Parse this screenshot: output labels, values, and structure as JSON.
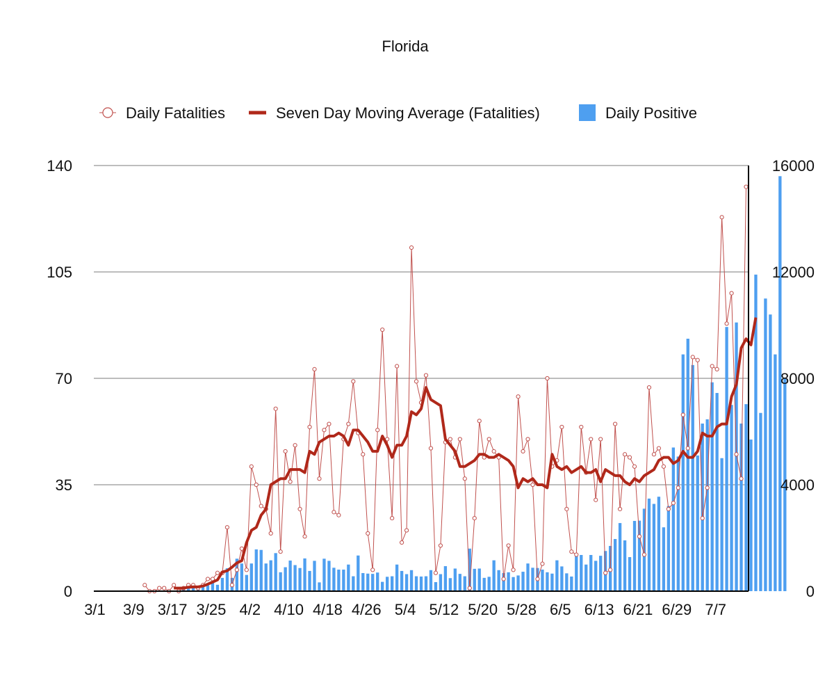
{
  "chart_data": {
    "type": "bar",
    "title": "Florida",
    "legend_position": "top",
    "grid": true,
    "x": {
      "start": "3/1",
      "count": 135,
      "tick_labels": [
        "3/1",
        "3/9",
        "3/17",
        "3/25",
        "4/2",
        "4/10",
        "4/18",
        "4/26",
        "5/4",
        "5/12",
        "5/20",
        "5/28",
        "6/5",
        "6/13",
        "6/21",
        "6/29",
        "7/7"
      ]
    },
    "y_left": {
      "range": [
        0,
        140
      ],
      "ticks": [
        "0",
        "35",
        "70",
        "105",
        "140"
      ]
    },
    "y_right": {
      "range": [
        0,
        16000
      ],
      "ticks": [
        "0",
        "4000",
        "8000",
        "12000",
        "16000"
      ]
    },
    "series": [
      {
        "name": "Daily Fatalities",
        "kind": "line-markers",
        "axis": "left",
        "color": "#c0504d",
        "start_index": 10,
        "values": [
          2,
          0,
          0,
          1,
          1,
          0,
          2,
          0,
          1,
          2,
          2,
          1,
          2,
          4,
          4,
          6,
          6,
          21,
          2,
          7,
          14,
          7,
          41,
          35,
          28,
          27,
          19,
          60,
          13,
          46,
          36,
          48,
          27,
          18,
          54,
          73,
          37,
          53,
          55,
          26,
          25,
          50,
          55,
          69,
          52,
          45,
          19,
          7,
          53,
          86,
          50,
          24,
          74,
          16,
          20,
          113,
          69,
          62,
          71,
          47,
          6,
          15,
          49,
          50,
          44,
          50,
          37,
          1,
          24,
          56,
          44,
          50,
          46,
          44,
          4,
          15,
          7,
          64,
          46,
          50,
          35,
          4,
          9,
          70,
          41,
          43,
          54,
          27,
          13,
          12,
          54,
          39,
          50,
          30,
          50,
          6,
          7,
          55,
          27,
          45,
          44,
          41,
          18,
          12,
          67,
          45,
          47,
          41,
          27,
          29,
          34,
          58,
          47,
          77,
          76,
          24,
          34,
          74,
          73,
          123,
          88,
          98,
          45,
          37,
          133
        ],
        "note": "stored in shifted form; see values_named"
      },
      {
        "name": "Seven Day Moving Average (Fatalities)",
        "kind": "line",
        "axis": "left",
        "color": "#b0281a",
        "start_index": 16,
        "values": [
          1,
          1,
          1,
          1.3,
          1.4,
          1.4,
          1.7,
          2.3,
          3,
          3.7,
          6.3,
          6.7,
          7.9,
          9.3,
          10,
          16,
          20,
          21,
          25,
          27,
          35,
          36,
          37,
          37,
          40,
          40,
          40,
          39,
          46,
          45,
          49,
          50,
          51,
          51,
          52,
          51,
          48,
          53,
          53,
          51,
          49,
          46,
          46,
          51,
          48,
          44,
          48,
          48,
          51,
          59,
          58,
          60,
          67,
          63,
          62,
          61,
          50,
          48,
          46,
          41,
          41,
          42,
          43,
          45,
          45,
          44,
          44,
          45,
          44,
          43,
          41,
          34,
          37,
          36,
          37,
          35,
          35,
          34,
          45,
          41,
          40,
          41,
          39,
          40,
          41,
          39,
          39,
          40,
          36,
          40,
          39,
          38,
          38,
          36,
          35,
          37,
          36,
          38,
          39,
          40,
          43,
          44,
          44,
          42,
          43,
          46,
          44,
          44,
          46,
          52,
          51,
          51,
          54,
          55,
          55,
          64,
          68,
          80,
          83,
          81,
          90
        ],
        "note": "stored in shifted form; see values_named"
      },
      {
        "name": "Daily Positive",
        "kind": "bar",
        "axis": "right",
        "color": "#4e9ff0",
        "start_index": 16,
        "values": [
          20,
          50,
          90,
          120,
          130,
          160,
          190,
          220,
          330,
          240,
          500,
          860,
          500,
          1220,
          1040,
          610,
          1040,
          1570,
          1550,
          1040,
          1160,
          1430,
          710,
          900,
          1150,
          980,
          870,
          1230,
          760,
          1140,
          330,
          1220,
          1140,
          880,
          810,
          810,
          1000,
          560,
          1340,
          680,
          660,
          650,
          700,
          350,
          540,
          560,
          1000,
          760,
          640,
          790,
          560,
          550,
          560,
          790,
          340,
          640,
          940,
          490,
          850,
          650,
          560,
          1600,
          840,
          850,
          500,
          540,
          1160,
          790,
          680,
          710,
          530,
          590,
          730,
          1040,
          880,
          870,
          810,
          710,
          660,
          1160,
          930,
          670,
          550,
          1380,
          1360,
          1000,
          1360,
          1140,
          1330,
          1510,
          1700,
          1960,
          2560,
          1910,
          1280,
          2640,
          2650,
          3100,
          3480,
          3280,
          3550,
          2400,
          3200,
          5400,
          5060,
          8900,
          9490,
          8500,
          5100,
          6300,
          6460,
          7850,
          7450,
          5000,
          9930,
          7000,
          10100,
          6300,
          7030,
          5700,
          11900,
          6700,
          11000,
          10400,
          8900,
          15600,
          8000
        ],
        "note": "stored in shifted form; see values_named"
      }
    ],
    "legend": [
      {
        "label": "Daily Fatalities",
        "symbol": "circle-marker"
      },
      {
        "label": "Seven Day Moving Average (Fatalities)",
        "symbol": "thick-line"
      },
      {
        "label": "Daily Positive",
        "symbol": "blue-square"
      }
    ]
  }
}
